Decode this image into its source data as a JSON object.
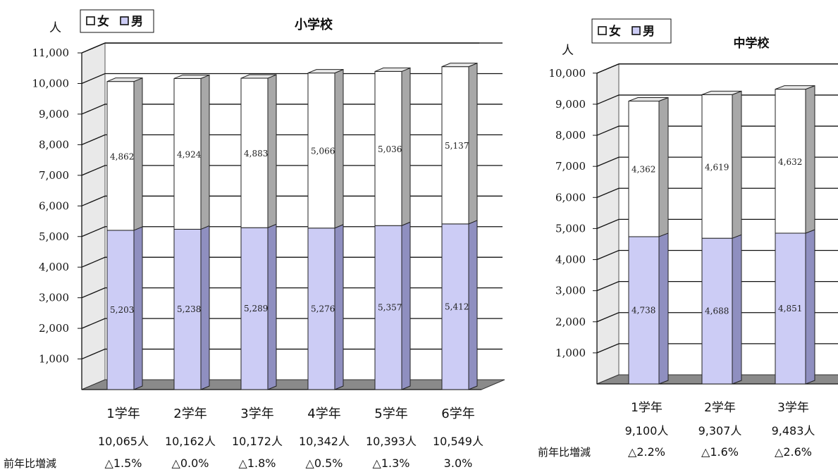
{
  "colors": {
    "female": "#ffffff",
    "male": "#ccccf5",
    "male_side": "#8f8fc0",
    "female_side": "#a8a8a8",
    "top": "#e6e6e6",
    "wall": "#e9e9e9",
    "floor": "#8a8a8a"
  },
  "chart_data": [
    {
      "type": "bar",
      "stacked": true,
      "title": "小学校",
      "unit_label": "人",
      "legend": [
        "女",
        "男"
      ],
      "legend_placement": "top-left",
      "categories": [
        "1学年",
        "2学年",
        "3学年",
        "4学年",
        "5学年",
        "6学年"
      ],
      "series": [
        {
          "name": "男",
          "values": [
            5203,
            5238,
            5289,
            5276,
            5357,
            5412
          ]
        },
        {
          "name": "女",
          "values": [
            4862,
            4924,
            4883,
            5066,
            5036,
            5137
          ]
        }
      ],
      "value_labels": {
        "男": [
          "5,203",
          "5,238",
          "5,289",
          "5,276",
          "5,357",
          "5,412"
        ],
        "女": [
          "4,862",
          "4,924",
          "4,883",
          "5,066",
          "5,036",
          "5,137"
        ]
      },
      "totals": [
        "10,065人",
        "10,162人",
        "10,172人",
        "10,342人",
        "10,393人",
        "10,549人"
      ],
      "change_label": "前年比増減",
      "changes": [
        "△1.5%",
        "△0.0%",
        "△1.8%",
        "△0.5%",
        "△1.3%",
        "3.0%"
      ],
      "ylim": [
        0,
        11000
      ],
      "yticks": [
        "1,000",
        "2,000",
        "3,000",
        "4,000",
        "5,000",
        "6,000",
        "7,000",
        "8,000",
        "9,000",
        "10,000",
        "11,000"
      ],
      "grid": true
    },
    {
      "type": "bar",
      "stacked": true,
      "title": "中学校",
      "unit_label": "人",
      "legend": [
        "女",
        "男"
      ],
      "legend_placement": "top-left",
      "categories": [
        "1学年",
        "2学年",
        "3学年"
      ],
      "series": [
        {
          "name": "男",
          "values": [
            4738,
            4688,
            4851
          ]
        },
        {
          "name": "女",
          "values": [
            4362,
            4619,
            4632
          ]
        }
      ],
      "value_labels": {
        "男": [
          "4,738",
          "4,688",
          "4,851"
        ],
        "女": [
          "4,362",
          "4,619",
          "4,632"
        ]
      },
      "totals": [
        "9,100人",
        "9,307人",
        "9,483人"
      ],
      "change_label": "前年比増減",
      "changes": [
        "△2.2%",
        "△1.6%",
        "△2.6%"
      ],
      "ylim": [
        0,
        10000
      ],
      "yticks": [
        "1,000",
        "2,000",
        "3,000",
        "4,000",
        "5,000",
        "6,000",
        "7,000",
        "8,000",
        "9,000",
        "10,000"
      ],
      "grid": true
    }
  ]
}
